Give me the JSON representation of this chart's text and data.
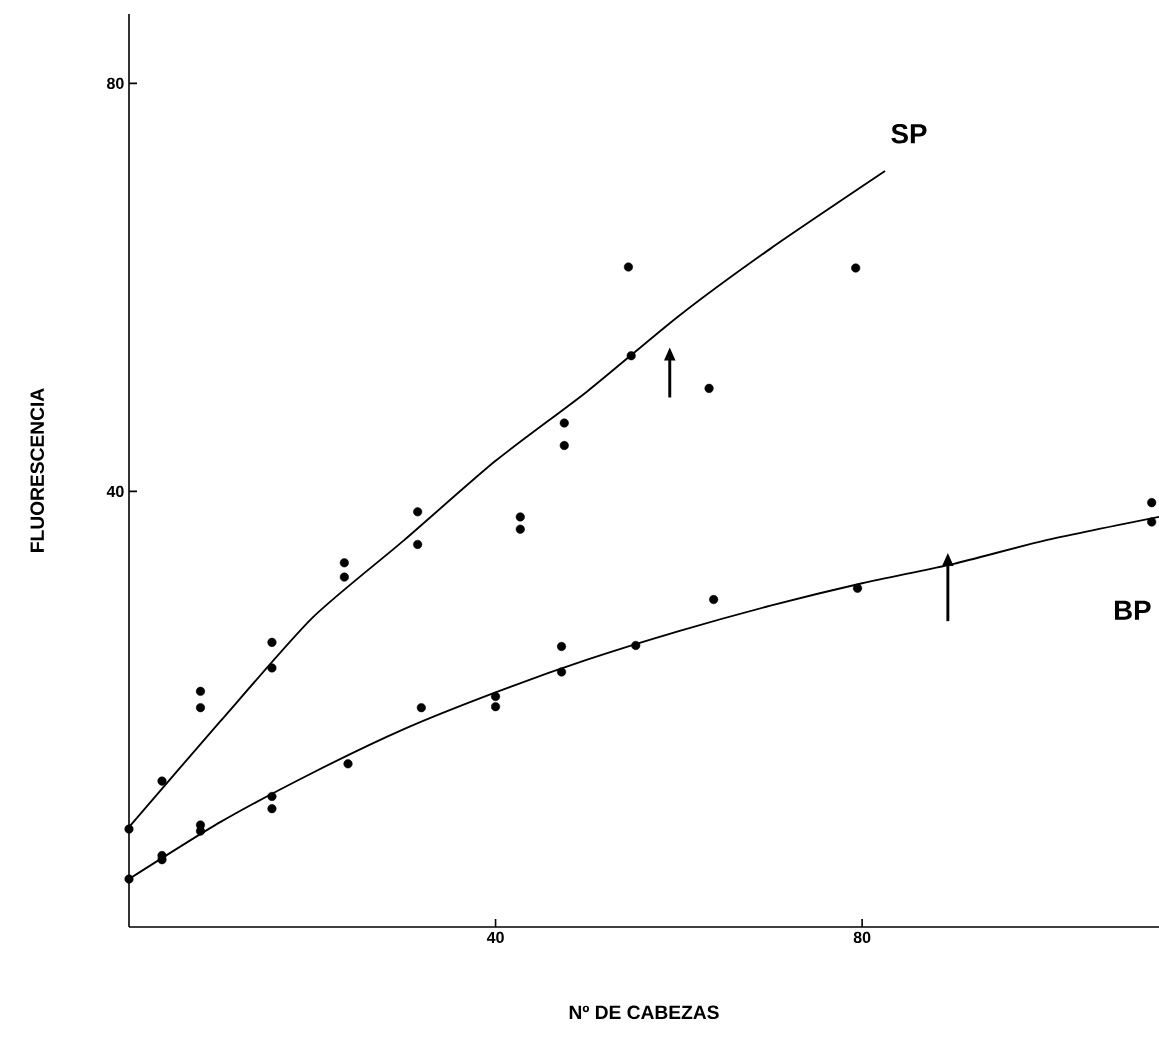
{
  "chart_data": {
    "type": "scatter",
    "xlabel": "Nº DE CABEZAS",
    "ylabel": "FLUORESCENCIA",
    "xlim": [
      0,
      112.4
    ],
    "ylim": [
      -2.7,
      86.8
    ],
    "xticks": [
      40,
      80
    ],
    "yticks": [
      40,
      80
    ],
    "grid": false,
    "line_style": "solid",
    "series": [
      {
        "color": "#000000",
        "marker": "circle",
        "x": [
          0,
          3.6,
          7.8,
          7.8,
          15.6,
          15.6,
          23.5,
          23.5,
          31.5,
          31.5,
          42.7,
          42.7,
          47.5,
          47.5,
          54.5,
          54.8,
          63.3,
          79.3
        ],
        "values": [
          6.9,
          11.6,
          20.4,
          18.8,
          25.2,
          22.7,
          33.0,
          31.6,
          38.0,
          34.8,
          37.5,
          36.3,
          46.7,
          44.5,
          62.0,
          53.3,
          50.1,
          61.9
        ]
      },
      {
        "color": "#000000",
        "marker": "circle",
        "x": [
          0,
          3.6,
          3.6,
          7.8,
          7.8,
          15.6,
          15.6,
          23.9,
          31.9,
          40.0,
          40.0,
          47.2,
          47.2,
          55.3,
          63.8,
          79.5,
          111.6,
          111.6
        ],
        "values": [
          2.0,
          4.3,
          3.9,
          7.3,
          6.7,
          10.1,
          8.9,
          13.3,
          18.8,
          19.9,
          18.9,
          24.8,
          22.3,
          24.9,
          29.4,
          30.5,
          38.9,
          37.0
        ]
      },
      {
        "name": "SP",
        "type": "line",
        "marker": "none",
        "color": "#000000",
        "x": [
          0,
          10,
          20,
          30,
          40,
          50,
          60,
          70,
          82.5
        ],
        "values": [
          7.1,
          17.5,
          27.6,
          35.2,
          43.0,
          49.8,
          57.2,
          63.8,
          71.4
        ]
      },
      {
        "name": "BP",
        "type": "line",
        "marker": "none",
        "color": "#000000",
        "x": [
          0,
          10,
          20,
          30,
          40,
          50,
          60,
          70,
          80,
          90,
          100,
          112.4
        ],
        "values": [
          2.0,
          7.6,
          12.4,
          16.7,
          20.3,
          23.5,
          26.3,
          28.8,
          31.0,
          32.9,
          35.2,
          37.5
        ]
      }
    ]
  }
}
